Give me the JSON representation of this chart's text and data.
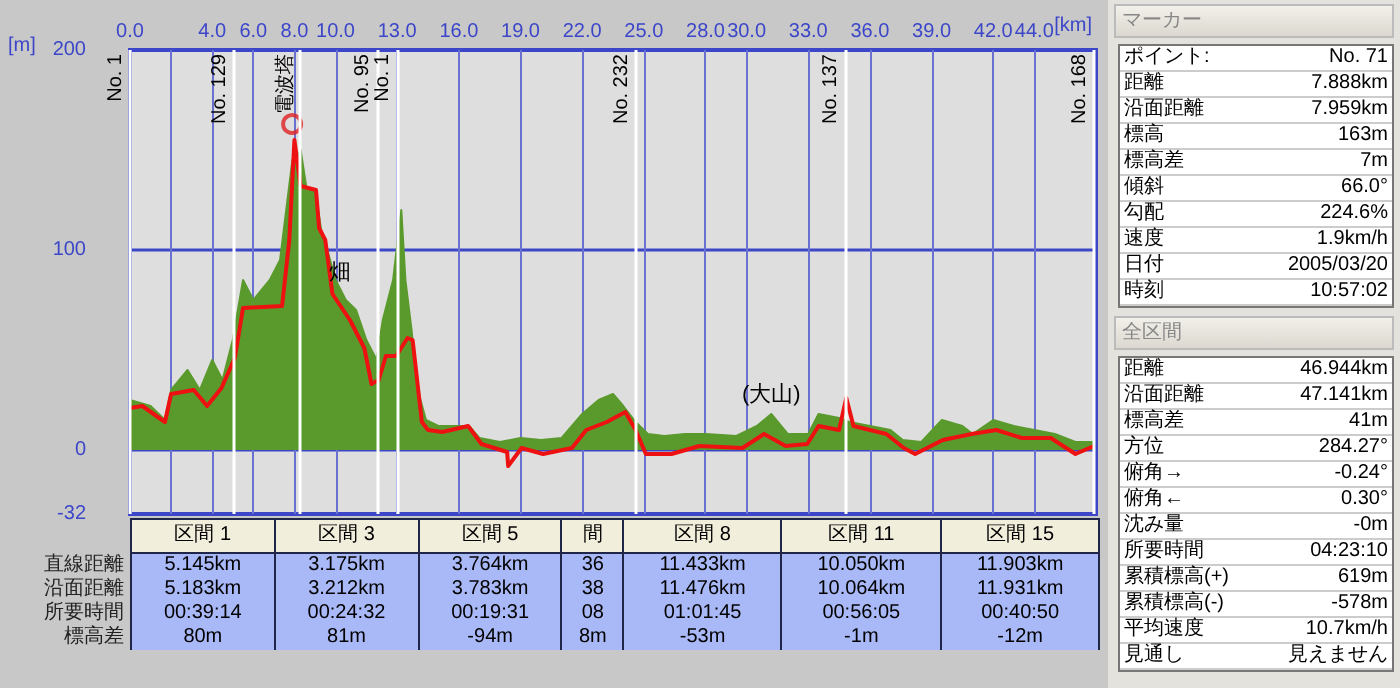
{
  "chart_data": [
    {
      "type": "area",
      "xlabel": "[km]",
      "ylabel": "[m]",
      "xlim": [
        0,
        47
      ],
      "ylim": [
        -32,
        200
      ],
      "xticks": [
        {
          "value": 0,
          "label": "0.0"
        },
        {
          "value": 2,
          "label": null
        },
        {
          "value": 4,
          "label": "4.0"
        },
        {
          "value": 6,
          "label": "6.0"
        },
        {
          "value": 8,
          "label": "8.0"
        },
        {
          "value": 10,
          "label": "10.0"
        },
        {
          "value": 13,
          "label": "13.0"
        },
        {
          "value": 16,
          "label": "16.0"
        },
        {
          "value": 19,
          "label": "19.0"
        },
        {
          "value": 22,
          "label": "22.0"
        },
        {
          "value": 25,
          "label": "25.0"
        },
        {
          "value": 28,
          "label": "28.0"
        },
        {
          "value": 30,
          "label": "30.0"
        },
        {
          "value": 33,
          "label": "33.0"
        },
        {
          "value": 36,
          "label": "36.0"
        },
        {
          "value": 39,
          "label": "39.0"
        },
        {
          "value": 42,
          "label": "42.0"
        },
        {
          "value": 44,
          "label": "44.0"
        }
      ],
      "yticks": [
        200,
        100,
        0,
        -32
      ],
      "grid": true,
      "series": [
        {
          "type": "area",
          "color": "#5a9a2c",
          "x": [
            0,
            1.0,
            1.7,
            2.0,
            2.8,
            3.4,
            4.0,
            4.5,
            5.0,
            5.5,
            6.0,
            6.8,
            7.3,
            7.6,
            7.9,
            8.1,
            8.3,
            8.6,
            9.0,
            9.3,
            9.6,
            10.0,
            10.5,
            11.0,
            11.5,
            12.0,
            12.3,
            12.8,
            13.2,
            13.4,
            13.7,
            14.0,
            14.4,
            15,
            16.5,
            17,
            18,
            19,
            20,
            21,
            22,
            22.8,
            23.5,
            24,
            24.6,
            25.2,
            26,
            27,
            28,
            29.5,
            30.5,
            31.2,
            32,
            33,
            33.5,
            34.5,
            35,
            36,
            37,
            37.6,
            38.5,
            39.5,
            40.5,
            41,
            42,
            43,
            44,
            45,
            46,
            46.9
          ],
          "values": [
            25,
            22,
            15,
            30,
            40,
            30,
            45,
            35,
            55,
            85,
            75,
            85,
            95,
            120,
            145,
            145,
            150,
            130,
            130,
            110,
            100,
            85,
            75,
            70,
            55,
            45,
            65,
            85,
            120,
            85,
            60,
            30,
            15,
            12,
            12,
            6,
            4,
            6,
            5,
            6,
            18,
            25,
            28,
            22,
            14,
            8,
            7,
            8,
            8,
            7,
            12,
            18,
            8,
            8,
            18,
            16,
            14,
            12,
            10,
            5,
            4,
            15,
            12,
            8,
            15,
            12,
            10,
            8,
            4,
            4
          ]
        },
        {
          "type": "line",
          "color": "#ee1111",
          "x": [
            0,
            0.6,
            1.7,
            2.0,
            3.1,
            3.75,
            4.45,
            5.1,
            5.5,
            7.4,
            7.75,
            8.0,
            8.3,
            9.05,
            9.2,
            9.5,
            9.85,
            10.7,
            11.4,
            11.75,
            12.1,
            12.45,
            12.95,
            13.5,
            13.75,
            14.2,
            14.5,
            15.2,
            16.45,
            17.1,
            18.35,
            18.4,
            19.05,
            20.1,
            21.5,
            22.2,
            23.2,
            24.1,
            24.6,
            25.1,
            26.35,
            27.7,
            29.8,
            30.85,
            31.9,
            32.95,
            33.5,
            34.5,
            34.85,
            35.2,
            36.8,
            37.65,
            38.2,
            39.55,
            40.95,
            42.15,
            43.4,
            44.8,
            46.0,
            46.9
          ],
          "values": [
            21,
            22,
            14,
            28,
            30,
            22,
            31,
            46,
            71,
            72,
            105,
            155,
            132,
            130,
            111,
            105,
            78,
            65,
            51,
            33,
            35,
            47,
            47,
            56,
            55,
            14,
            10,
            9,
            12,
            3,
            -1,
            -8,
            1,
            -2,
            1,
            10,
            14,
            19,
            10,
            -2,
            -2,
            2,
            1,
            8,
            2,
            3,
            12,
            10,
            26,
            12,
            8,
            1,
            -2,
            5,
            8,
            10,
            6,
            6,
            -2,
            2
          ]
        },
        {
          "type": "scatter",
          "color": "#e02020",
          "marker": "circle",
          "x": [
            7.888
          ],
          "values": [
            163
          ]
        }
      ],
      "ref_lines": [
        {
          "axis": "x",
          "value": 0,
          "label": "No. 1",
          "color": "#ffffff"
        },
        {
          "axis": "x",
          "value": 5.06,
          "label": "No. 129",
          "color": "#ffffff"
        },
        {
          "axis": "x",
          "value": 8.27,
          "label": "電波塔",
          "color": "#ffffff"
        },
        {
          "axis": "x",
          "value": 12.0,
          "label": "No. 95",
          "color": "#ffffff"
        },
        {
          "axis": "x",
          "value": 13.0,
          "label": "No. 1",
          "color": "#ffffff"
        },
        {
          "axis": "x",
          "value": 24.6,
          "label": "No. 232",
          "color": "#ffffff"
        },
        {
          "axis": "x",
          "value": 34.8,
          "label": "No. 137",
          "color": "#ffffff"
        },
        {
          "axis": "x",
          "value": 46.9,
          "label": "No. 168",
          "color": "#ffffff"
        }
      ],
      "annotations": [
        {
          "text": "畑",
          "x": 10.2,
          "y": 79
        },
        {
          "text": "(大山)",
          "x": 31.2,
          "y": 18
        }
      ]
    },
    {
      "type": "other",
      "categories": [
        "区間 1",
        "区間 3",
        "区間 5",
        "間",
        "区間 8",
        "区間 11",
        "区間 15"
      ],
      "y_categories": [
        "直線距離",
        "沿面距離",
        "所要時間",
        "標高差"
      ],
      "cell_labels": [
        [
          "5.145km",
          "3.175km",
          "3.764km",
          "36",
          "11.433km",
          "10.050km",
          "11.903km"
        ],
        [
          "5.183km",
          "3.212km",
          "3.783km",
          "38",
          "11.476km",
          "10.064km",
          "11.931km"
        ],
        [
          "00:39:14",
          "00:24:32",
          "00:19:31",
          "08",
          "01:01:45",
          "00:56:05",
          "00:40:50"
        ],
        [
          "80m",
          "81m",
          "-94m",
          "8m",
          "-53m",
          "-1m",
          "-12m"
        ]
      ]
    },
    {
      "type": "other",
      "title": "マーカー",
      "y_categories": [
        "ポイント:",
        "距離",
        "沿面距離",
        "標高",
        "標高差",
        "傾斜",
        "勾配",
        "速度",
        "日付",
        "時刻"
      ],
      "cell_labels": [
        [
          "No. 71"
        ],
        [
          "7.888km"
        ],
        [
          "7.959km"
        ],
        [
          "163m"
        ],
        [
          "7m"
        ],
        [
          "66.0°"
        ],
        [
          "224.6%"
        ],
        [
          "1.9km/h"
        ],
        [
          "2005/03/20"
        ],
        [
          "10:57:02"
        ]
      ]
    },
    {
      "type": "other",
      "title": "全区間",
      "y_categories": [
        "距離",
        "沿面距離",
        "標高差",
        "方位",
        "俯角→",
        "俯角←",
        "沈み量",
        "所要時間",
        "累積標高(+)",
        "累積標高(-)",
        "平均速度",
        "見通し"
      ],
      "cell_labels": [
        [
          "46.944km"
        ],
        [
          "47.141km"
        ],
        [
          "41m"
        ],
        [
          "284.27°"
        ],
        [
          "-0.24°"
        ],
        [
          "0.30°"
        ],
        [
          "-0m"
        ],
        [
          "04:23:10"
        ],
        [
          "619m"
        ],
        [
          "-578m"
        ],
        [
          "10.7km/h"
        ],
        [
          "見えません"
        ]
      ]
    }
  ]
}
